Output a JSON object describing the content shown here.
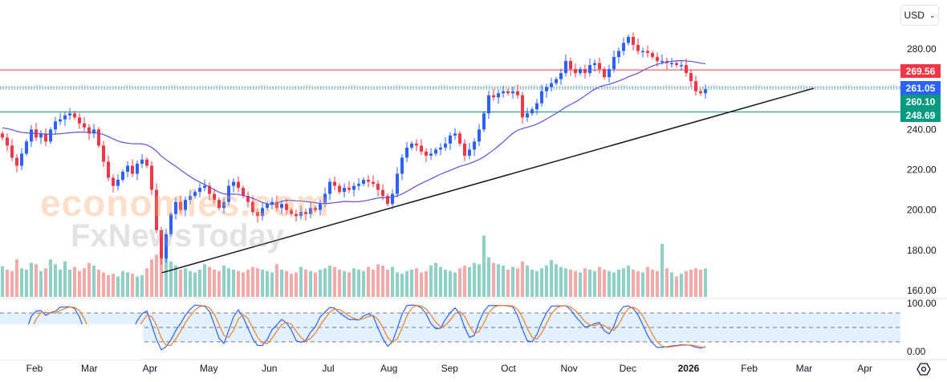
{
  "header": {
    "currency_label": "USD"
  },
  "price_badges": [
    {
      "value": "269.56",
      "color": "#f23645"
    },
    {
      "value": "261.05",
      "color": "#2962ff"
    },
    {
      "value": "260.10",
      "color": "#089981"
    },
    {
      "value": "248.69",
      "color": "#089981"
    }
  ],
  "watermark": {
    "line1": "economies.com",
    "line2": "FxNewsToday"
  },
  "chart_data": {
    "type": "candlestick",
    "colors": {
      "up": "#2962ff",
      "down": "#f23645",
      "vol_up": "#8fd1c4",
      "vol_down": "#f5a9a9",
      "ma": "#5a52e0",
      "stoch_k": "#2962ff",
      "stoch_d": "#f57c2b",
      "band_fill": "#e3f0fd"
    },
    "y_ticks": [
      280,
      240,
      220,
      200,
      180,
      160
    ],
    "y_tick_labels": [
      "280.00",
      "240.00",
      "220.00",
      "200.00",
      "180.00",
      "160.00"
    ],
    "ylim": [
      160,
      280
    ],
    "x_tick_labels": [
      {
        "label": "Feb",
        "date": "2025-02-01"
      },
      {
        "label": "Mar",
        "date": "2025-03-01"
      },
      {
        "label": "Apr",
        "date": "2025-04-01"
      },
      {
        "label": "May",
        "date": "2025-05-01"
      },
      {
        "label": "Jun",
        "date": "2025-06-01"
      },
      {
        "label": "Jul",
        "date": "2025-07-01"
      },
      {
        "label": "Aug",
        "date": "2025-08-01"
      },
      {
        "label": "Sep",
        "date": "2025-09-01"
      },
      {
        "label": "Oct",
        "date": "2025-10-01"
      },
      {
        "label": "Nov",
        "date": "2025-11-01"
      },
      {
        "label": "Dec",
        "date": "2025-12-01"
      },
      {
        "label": "2026",
        "date": "2026-01-01"
      },
      {
        "label": "Feb",
        "date": "2026-02-01"
      },
      {
        "label": "Mar",
        "date": "2026-03-01"
      },
      {
        "label": "Apr",
        "date": "2026-04-01"
      }
    ],
    "horizontal_levels": [
      {
        "price": 269.56,
        "color": "#f23645",
        "style": "solid"
      },
      {
        "price": 261.05,
        "color": "#2962ff",
        "style": "dotted"
      },
      {
        "price": 260.1,
        "color": "#089981",
        "style": "dotted"
      },
      {
        "price": 248.69,
        "color": "#089981",
        "style": "solid"
      }
    ],
    "trendline": {
      "start": {
        "date": "2025-04-07",
        "price": 168.8
      },
      "end": {
        "date": "2026-03-06",
        "price": 260.5
      }
    },
    "closes": [
      236,
      232,
      226,
      222,
      228,
      234,
      240,
      236,
      238,
      234,
      240,
      244,
      245,
      247,
      248,
      246,
      243,
      241,
      238,
      240,
      232,
      224,
      216,
      212,
      215,
      219,
      222,
      218,
      223,
      225,
      222,
      210,
      190,
      176,
      188,
      198,
      204,
      200,
      205,
      207,
      209,
      211,
      212,
      208,
      205,
      201,
      204,
      212,
      214,
      211,
      207,
      204,
      199,
      197,
      201,
      203,
      204,
      201,
      203,
      200,
      198,
      197,
      199,
      198,
      201,
      200,
      203,
      208,
      214,
      212,
      209,
      211,
      210,
      212,
      213,
      215,
      214,
      213,
      210,
      207,
      203,
      208,
      218,
      226,
      231,
      233,
      232,
      229,
      227,
      228,
      230,
      231,
      233,
      237,
      238,
      233,
      227,
      230,
      234,
      240,
      248,
      257,
      256,
      258,
      259,
      258,
      259,
      257,
      246,
      248,
      250,
      253,
      259,
      261,
      263,
      265,
      268,
      274,
      270,
      268,
      270,
      268,
      272,
      273,
      270,
      266,
      270,
      276,
      279,
      283,
      286,
      282,
      279,
      279,
      278,
      276,
      274,
      274,
      273,
      273,
      272,
      272,
      268,
      264,
      259,
      258,
      260
    ],
    "volume": [
      45,
      40,
      38,
      55,
      42,
      40,
      50,
      48,
      38,
      42,
      55,
      48,
      40,
      52,
      40,
      44,
      38,
      42,
      50,
      46,
      40,
      36,
      32,
      34,
      30,
      38,
      36,
      34,
      30,
      32,
      42,
      55,
      62,
      90,
      60,
      52,
      46,
      40,
      42,
      38,
      36,
      40,
      48,
      44,
      40,
      38,
      46,
      42,
      40,
      38,
      36,
      40,
      44,
      42,
      40,
      38,
      36,
      48,
      40,
      38,
      34,
      36,
      44,
      40,
      38,
      36,
      40,
      42,
      46,
      44,
      40,
      38,
      36,
      42,
      40,
      38,
      44,
      40,
      48,
      46,
      40,
      44,
      36,
      34,
      38,
      40,
      42,
      36,
      38,
      46,
      50,
      44,
      40,
      38,
      36,
      42,
      46,
      44,
      50,
      48,
      90,
      58,
      50,
      48,
      46,
      40,
      44,
      42,
      52,
      46,
      40,
      38,
      42,
      46,
      54,
      48,
      44,
      42,
      40,
      38,
      36,
      42,
      40,
      38,
      44,
      40,
      38,
      36,
      40,
      42,
      46,
      40,
      38,
      36,
      44,
      40,
      38,
      78,
      42,
      36,
      30,
      34,
      38,
      40,
      42,
      40,
      42
    ],
    "ma_period": 25,
    "stochastic": {
      "y_tick_labels": [
        "100.00",
        "0.00"
      ],
      "ylim": [
        0,
        100
      ],
      "levels": [
        80,
        50,
        20
      ],
      "k_period": 7,
      "smooth": 3
    }
  }
}
